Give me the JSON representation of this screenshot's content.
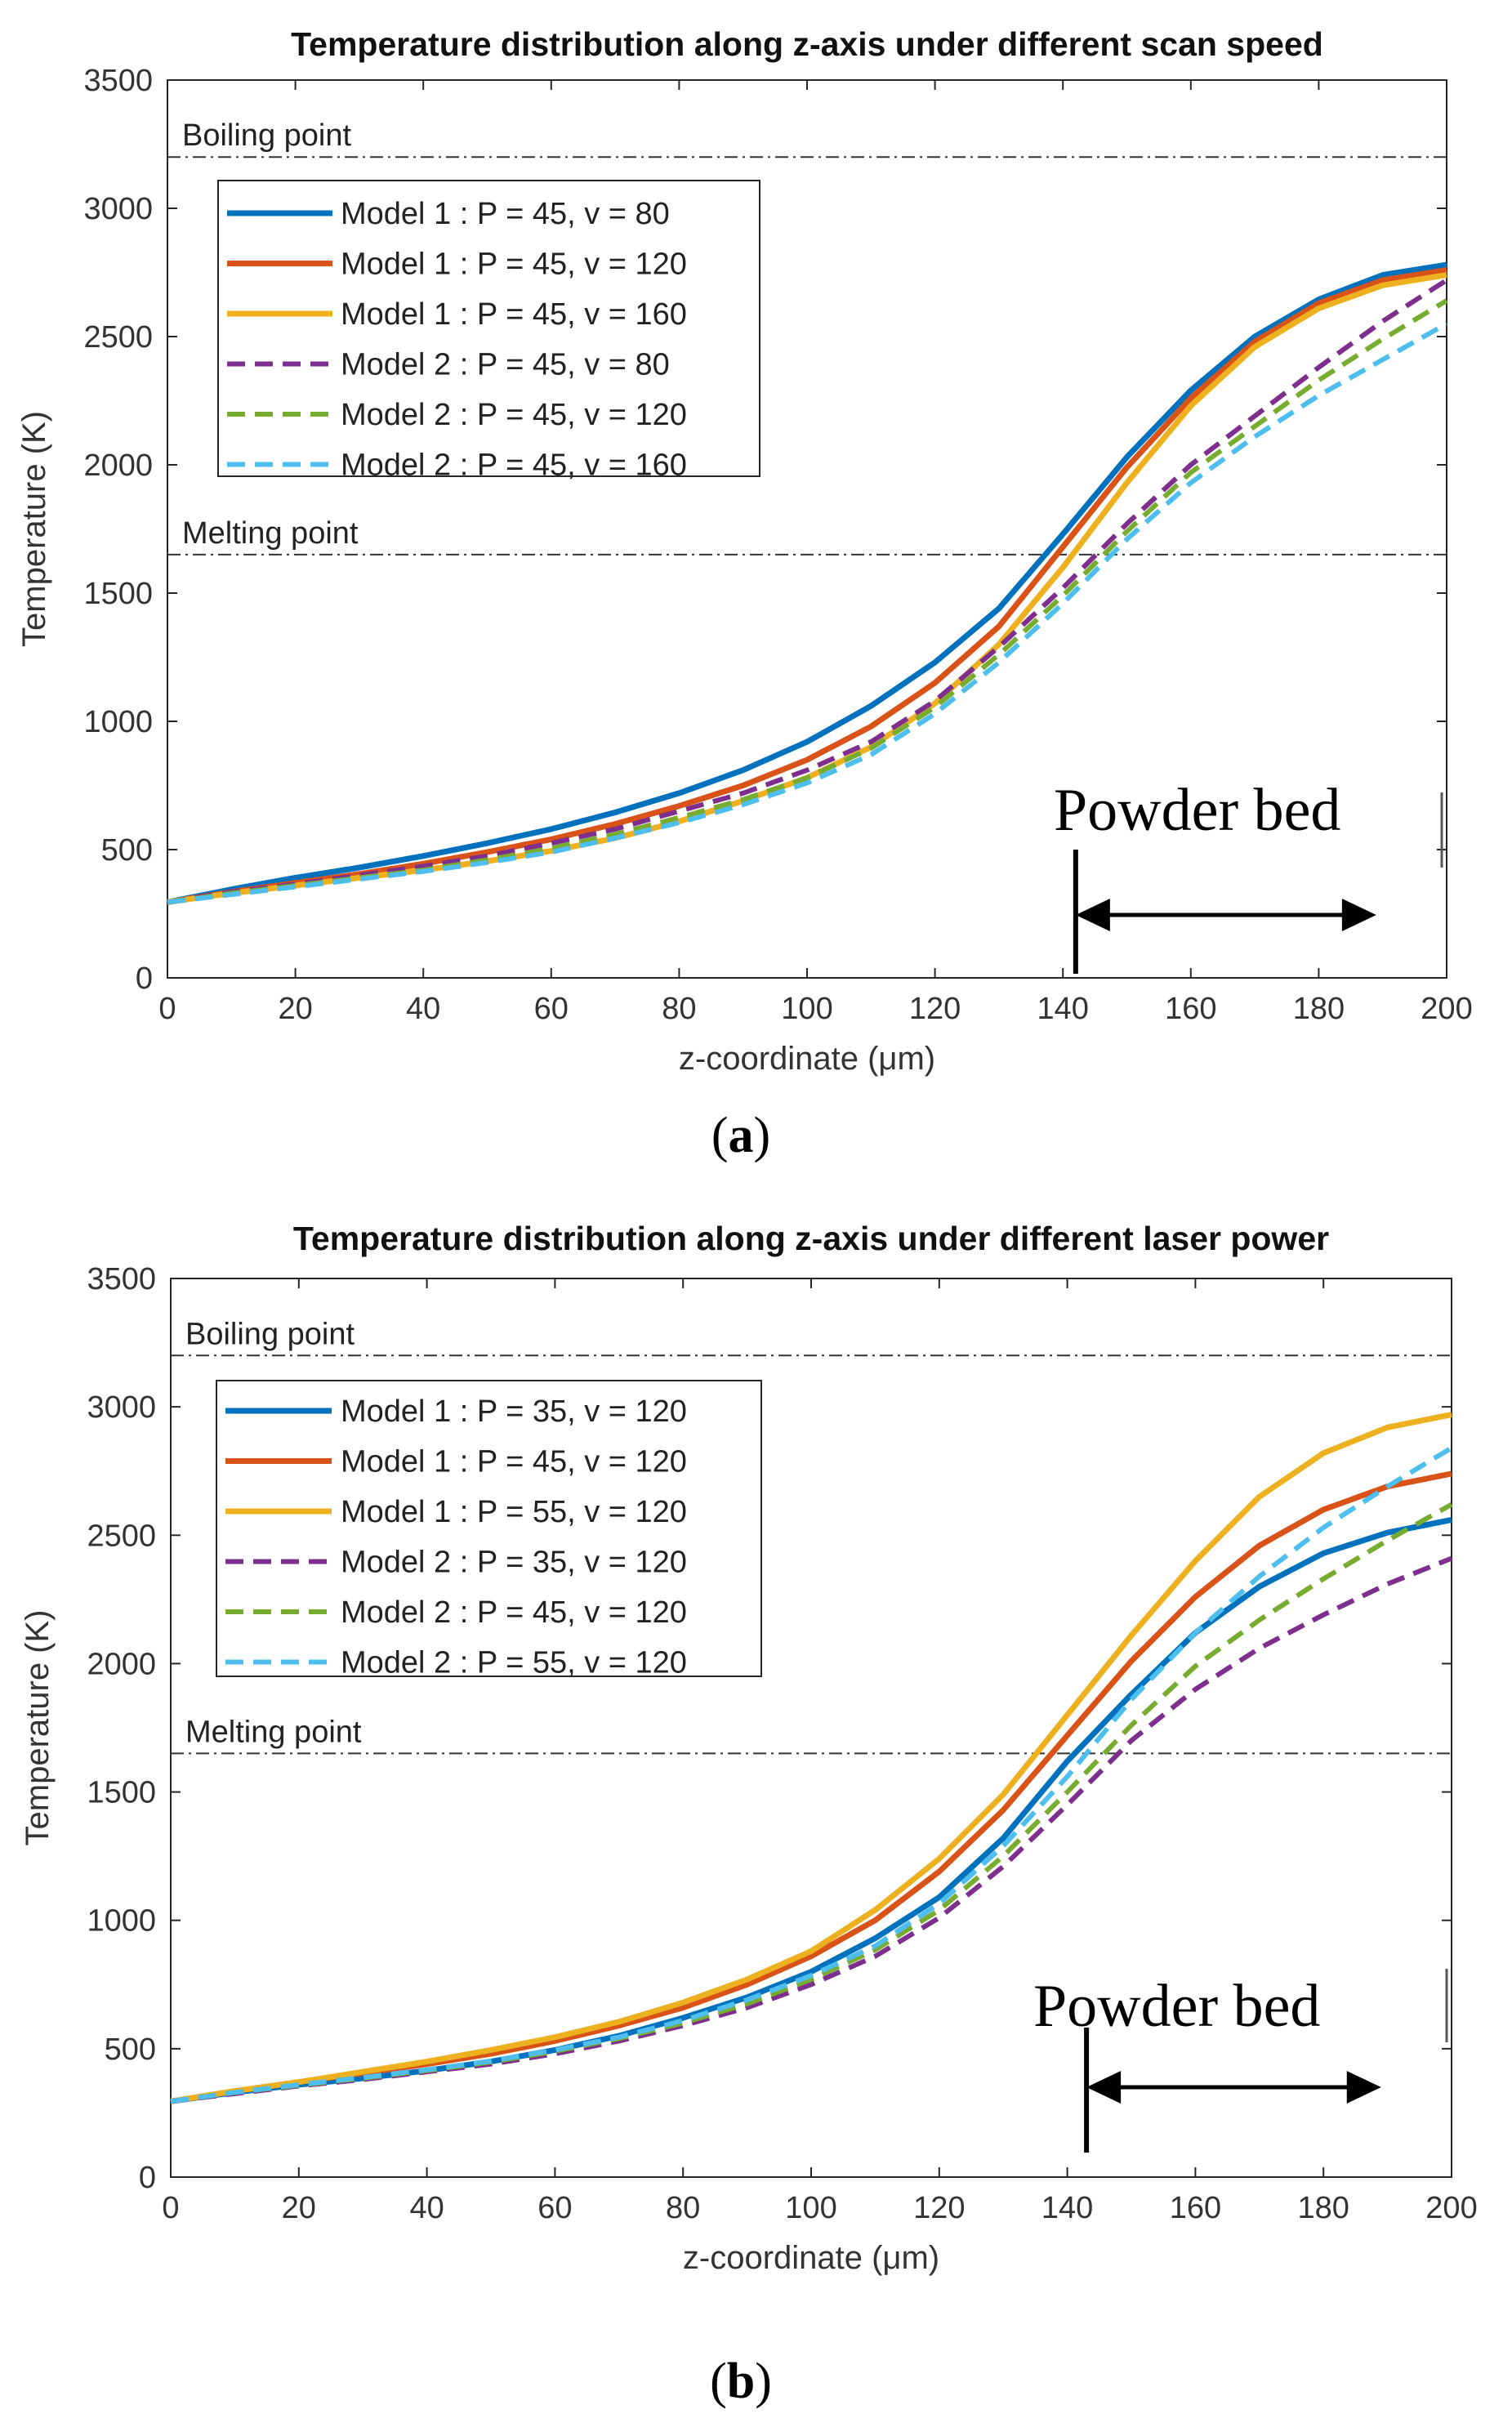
{
  "chart_data": [
    {
      "type": "line",
      "panel": "a",
      "caption": {
        "open": "(",
        "letter": "a",
        "close": ")"
      },
      "title": "Temperature distribution along z-axis under different scan speed",
      "xlabel": "z-coordinate (μm)",
      "ylabel": "Temperature (K)",
      "xlim": [
        0,
        200
      ],
      "ylim": [
        0,
        3500
      ],
      "xticks": [
        0,
        20,
        40,
        60,
        80,
        100,
        120,
        140,
        160,
        180,
        200
      ],
      "yticks": [
        0,
        500,
        1000,
        1500,
        2000,
        2500,
        3000,
        3500
      ],
      "x": [
        0,
        10,
        20,
        30,
        40,
        50,
        60,
        70,
        80,
        90,
        100,
        110,
        120,
        130,
        140,
        150,
        160,
        170,
        180,
        190,
        200
      ],
      "reference_lines": [
        {
          "label": "Boiling point",
          "y": 3200
        },
        {
          "label": "Melting point",
          "y": 1650
        }
      ],
      "annotation": {
        "text": "Powder bed",
        "start_x": 142,
        "end_x": 189
      },
      "series": [
        {
          "name": "Model 1 : P = 45, v = 80",
          "color": "#0072BD",
          "dash": "solid",
          "values": [
            295,
            345,
            390,
            430,
            475,
            525,
            580,
            645,
            720,
            810,
            920,
            1060,
            1230,
            1440,
            1730,
            2030,
            2290,
            2500,
            2645,
            2740,
            2780
          ]
        },
        {
          "name": "Model 1 : P = 45, v = 120",
          "color": "#D95319",
          "dash": "solid",
          "values": [
            295,
            335,
            370,
            405,
            445,
            490,
            540,
            600,
            670,
            750,
            850,
            980,
            1150,
            1370,
            1680,
            1990,
            2260,
            2480,
            2630,
            2720,
            2760
          ]
        },
        {
          "name": "Model 1 : P = 45, v = 160",
          "color": "#EDB120",
          "dash": "solid",
          "values": [
            295,
            330,
            360,
            390,
            420,
            455,
            495,
            545,
            610,
            690,
            780,
            900,
            1070,
            1300,
            1600,
            1930,
            2230,
            2460,
            2610,
            2700,
            2740
          ]
        },
        {
          "name": "Model 2 : P = 45, v = 80",
          "color": "#7E2F8E",
          "dash": "dashed",
          "values": [
            295,
            335,
            365,
            400,
            435,
            475,
            525,
            580,
            650,
            720,
            810,
            920,
            1080,
            1290,
            1520,
            1770,
            2000,
            2190,
            2380,
            2560,
            2720
          ]
        },
        {
          "name": "Model 2 : P = 45, v = 120",
          "color": "#77AC30",
          "dash": "dashed",
          "values": [
            295,
            330,
            360,
            390,
            420,
            460,
            505,
            560,
            625,
            695,
            780,
            895,
            1055,
            1260,
            1490,
            1740,
            1970,
            2150,
            2330,
            2490,
            2640
          ]
        },
        {
          "name": "Model 2 : P = 45, v = 160",
          "color": "#4DBEEE",
          "dash": "dashed",
          "values": [
            295,
            325,
            355,
            385,
            415,
            450,
            490,
            545,
            605,
            675,
            760,
            870,
            1030,
            1230,
            1460,
            1710,
            1930,
            2110,
            2270,
            2410,
            2550
          ]
        }
      ]
    },
    {
      "type": "line",
      "panel": "b",
      "caption": {
        "open": "(",
        "letter": "b",
        "close": ")"
      },
      "title": "Temperature distribution along z-axis under different laser power",
      "xlabel": "z-coordinate (μm)",
      "ylabel": "Temperature (K)",
      "xlim": [
        0,
        200
      ],
      "ylim": [
        0,
        3500
      ],
      "xticks": [
        0,
        20,
        40,
        60,
        80,
        100,
        120,
        140,
        160,
        180,
        200
      ],
      "yticks": [
        0,
        500,
        1000,
        1500,
        2000,
        2500,
        3000,
        3500
      ],
      "x": [
        0,
        10,
        20,
        30,
        40,
        50,
        60,
        70,
        80,
        90,
        100,
        110,
        120,
        130,
        140,
        150,
        160,
        170,
        180,
        190,
        200
      ],
      "reference_lines": [
        {
          "label": "Boiling point",
          "y": 3200
        },
        {
          "label": "Melting point",
          "y": 1650
        }
      ],
      "annotation": {
        "text": "Powder bed",
        "start_x": 143,
        "end_x": 189
      },
      "series": [
        {
          "name": "Model 1 : P = 35, v = 120",
          "color": "#0072BD",
          "dash": "solid",
          "values": [
            295,
            330,
            360,
            385,
            415,
            450,
            495,
            550,
            620,
            700,
            800,
            930,
            1090,
            1320,
            1620,
            1880,
            2120,
            2300,
            2430,
            2510,
            2560
          ]
        },
        {
          "name": "Model 1 : P = 45, v = 120",
          "color": "#D95319",
          "dash": "solid",
          "values": [
            295,
            335,
            370,
            405,
            440,
            480,
            530,
            590,
            660,
            750,
            860,
            1000,
            1190,
            1430,
            1720,
            2010,
            2260,
            2460,
            2600,
            2690,
            2740
          ]
        },
        {
          "name": "Model 1 : P = 55, v = 120",
          "color": "#EDB120",
          "dash": "solid",
          "values": [
            295,
            335,
            370,
            410,
            450,
            495,
            545,
            605,
            680,
            770,
            880,
            1040,
            1240,
            1490,
            1800,
            2110,
            2400,
            2650,
            2820,
            2920,
            2970
          ]
        },
        {
          "name": "Model 2 : P = 35, v = 120",
          "color": "#7E2F8E",
          "dash": "dashed",
          "values": [
            295,
            325,
            355,
            380,
            410,
            440,
            480,
            530,
            590,
            660,
            750,
            860,
            1010,
            1210,
            1450,
            1700,
            1900,
            2060,
            2190,
            2310,
            2410
          ]
        },
        {
          "name": "Model 2 : P = 45, v = 120",
          "color": "#77AC30",
          "dash": "dashed",
          "values": [
            295,
            330,
            358,
            385,
            415,
            448,
            490,
            540,
            600,
            675,
            770,
            885,
            1040,
            1250,
            1500,
            1760,
            1990,
            2170,
            2330,
            2480,
            2620
          ]
        },
        {
          "name": "Model 2 : P = 55, v = 120",
          "color": "#4DBEEE",
          "dash": "dashed",
          "values": [
            295,
            330,
            360,
            388,
            418,
            452,
            495,
            545,
            610,
            690,
            785,
            900,
            1065,
            1290,
            1560,
            1860,
            2120,
            2340,
            2530,
            2690,
            2840
          ]
        }
      ]
    }
  ]
}
